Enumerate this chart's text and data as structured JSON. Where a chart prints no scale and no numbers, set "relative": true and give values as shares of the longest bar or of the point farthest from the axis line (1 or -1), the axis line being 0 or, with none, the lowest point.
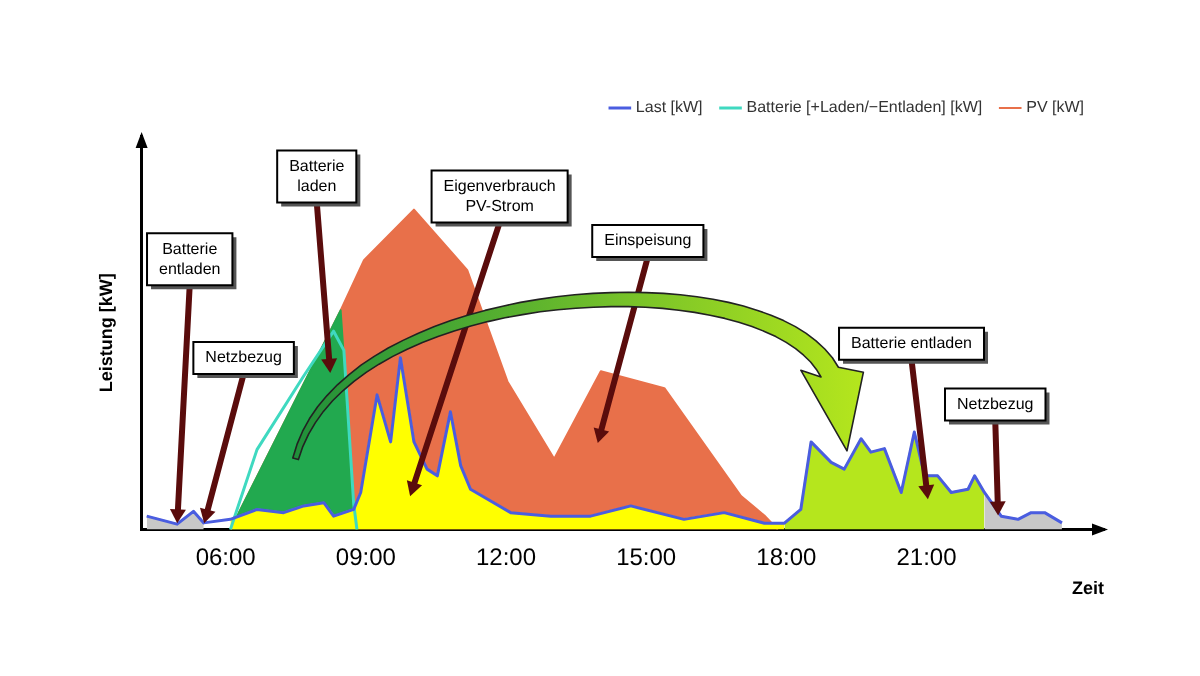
{
  "chart_data": {
    "type": "line",
    "xlabel": "Zeit",
    "ylabel": "Leistung [kW]",
    "relative": true,
    "tick_labels": "x",
    "legend": "top right",
    "xlim": [
      4.2,
      24.8
    ],
    "xticks": [
      {
        "value": 6,
        "label": "06:00"
      },
      {
        "value": 9,
        "label": "09:00"
      },
      {
        "value": 12,
        "label": "12:00"
      },
      {
        "value": 15,
        "label": "15:00"
      },
      {
        "value": 18,
        "label": "18:00"
      },
      {
        "value": 21,
        "label": "21:00"
      }
    ],
    "series": [
      {
        "name": "PV [kW]",
        "type": "area",
        "color": "#e8704a",
        "x": [
          6.1,
          8.46,
          8.96,
          10.03,
          11.17,
          12.03,
          13.03,
          14.03,
          15.39,
          17.03,
          17.53,
          17.82
        ],
        "values": [
          0,
          0.685,
          0.842,
          1,
          0.811,
          0.463,
          0.221,
          0.495,
          0.442,
          0.105,
          0.044,
          0
        ]
      },
      {
        "type": "area",
        "color": "#22a94f",
        "x": [
          6.1,
          8.46,
          8.74,
          8.81
        ],
        "values": [
          0,
          0.685,
          0.08,
          0
        ]
      },
      {
        "type": "area",
        "color": "#ffff00",
        "x": [
          6.1,
          6.67,
          7.24,
          7.67,
          8.1,
          8.31,
          8.74,
          8.89,
          9.24,
          9.53,
          9.74,
          10.03,
          10.31,
          10.53,
          10.81,
          11.03,
          11.24,
          12.1,
          12.96,
          13.81,
          14.67,
          15.81,
          16.67,
          17.53,
          17.96
        ],
        "values": [
          0.032,
          0.063,
          0.053,
          0.074,
          0.084,
          0.042,
          0.063,
          0.116,
          0.421,
          0.274,
          0.537,
          0.274,
          0.189,
          0.168,
          0.368,
          0.2,
          0.126,
          0.053,
          0.042,
          0.042,
          0.074,
          0.032,
          0.053,
          0.02,
          0.02
        ]
      },
      {
        "type": "area",
        "color": "#b5e61d",
        "x": [
          17.96,
          18.31,
          18.53,
          18.96,
          19.24,
          19.6,
          19.81,
          20.1,
          20.46,
          20.74,
          20.96,
          21.24,
          21.53,
          21.89,
          22.03,
          22.24
        ],
        "values": [
          0.02,
          0.063,
          0.274,
          0.21,
          0.189,
          0.284,
          0.242,
          0.253,
          0.116,
          0.305,
          0.168,
          0.168,
          0.116,
          0.126,
          0.168,
          0.116
        ]
      },
      {
        "type": "area",
        "color": "#c8c8c8",
        "x": [
          22.24,
          22.6,
          22.96,
          23.24,
          23.53,
          23.9
        ],
        "values": [
          0.116,
          0.042,
          0.032,
          0.053,
          0.053,
          0.021
        ]
      },
      {
        "type": "area",
        "color": "#c8c8c8",
        "x": [
          4.31,
          4.96,
          5.31,
          5.53
        ],
        "values": [
          0.042,
          0.017,
          0.057,
          0.021
        ]
      },
      {
        "name": "Batterie [+Laden/−Entladen] [kW]",
        "color": "#3fd9c0",
        "x": [
          6.1,
          6.67,
          7.67,
          8.31,
          8.53,
          8.74,
          8.81
        ],
        "values": [
          0,
          0.25,
          0.48,
          0.62,
          0.56,
          0.08,
          0
        ]
      },
      {
        "name": "Last [kW]",
        "color": "#4a5de0",
        "x": [
          4.31,
          4.96,
          5.31,
          5.53,
          6.1,
          6.67,
          7.24,
          7.67,
          8.1,
          8.31,
          8.74,
          8.89,
          9.24,
          9.53,
          9.74,
          10.03,
          10.31,
          10.53,
          10.81,
          11.03,
          11.24,
          12.1,
          12.96,
          13.81,
          14.67,
          15.81,
          16.67,
          17.53,
          17.96,
          18.31,
          18.53,
          18.96,
          19.24,
          19.6,
          19.81,
          20.1,
          20.46,
          20.74,
          20.96,
          21.24,
          21.53,
          21.89,
          22.03,
          22.24,
          22.6,
          22.96,
          23.24,
          23.53,
          23.9
        ],
        "values": [
          0.042,
          0.017,
          0.057,
          0.021,
          0.032,
          0.063,
          0.053,
          0.074,
          0.084,
          0.042,
          0.063,
          0.116,
          0.421,
          0.274,
          0.537,
          0.274,
          0.189,
          0.168,
          0.368,
          0.2,
          0.126,
          0.053,
          0.042,
          0.042,
          0.074,
          0.032,
          0.053,
          0.02,
          0.02,
          0.063,
          0.274,
          0.21,
          0.189,
          0.284,
          0.242,
          0.253,
          0.116,
          0.305,
          0.168,
          0.168,
          0.116,
          0.126,
          0.168,
          0.116,
          0.042,
          0.032,
          0.053,
          0.053,
          0.021
        ]
      }
    ],
    "annotations": [
      "Batterie\nentladen",
      "Netzbezug",
      "Batterie\nladen",
      "Eigenverbrauch\nPV-Strom",
      "Einspeisung",
      "Batterie entladen",
      "Netzbezug"
    ]
  }
}
